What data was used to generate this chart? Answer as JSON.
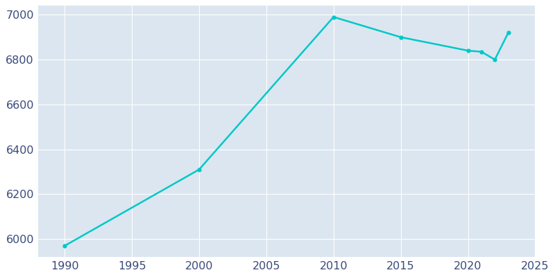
{
  "years": [
    1990,
    2000,
    2010,
    2015,
    2020,
    2021,
    2022,
    2023
  ],
  "population": [
    5970,
    6310,
    6990,
    6900,
    6840,
    6835,
    6800,
    6920
  ],
  "line_color": "#00C8C8",
  "marker": "o",
  "marker_size": 3.5,
  "line_width": 1.8,
  "plot_bg_color": "#dce6f0",
  "fig_bg_color": "#ffffff",
  "xlim": [
    1988,
    2025
  ],
  "ylim": [
    5920,
    7040
  ],
  "xticks": [
    1990,
    1995,
    2000,
    2005,
    2010,
    2015,
    2020,
    2025
  ],
  "yticks": [
    6000,
    6200,
    6400,
    6600,
    6800,
    7000
  ],
  "grid_color": "#ffffff",
  "tick_color": "#3a4a7a",
  "tick_fontsize": 11.5,
  "spine_visible": false
}
